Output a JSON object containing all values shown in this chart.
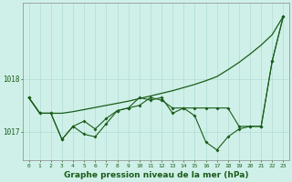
{
  "background_color": "#cff0e8",
  "line_color": "#1a5c1a",
  "grid_color": "#b0ddd4",
  "title": "Graphe pression niveau de la mer (hPa)",
  "title_fontsize": 6.5,
  "hours": [
    0,
    1,
    2,
    3,
    4,
    5,
    6,
    7,
    8,
    9,
    10,
    11,
    12,
    13,
    14,
    15,
    16,
    17,
    18,
    19,
    20,
    21,
    22,
    23
  ],
  "s_zigzag": [
    1017.65,
    1017.35,
    1017.35,
    1016.85,
    1017.1,
    1016.95,
    1016.9,
    1017.15,
    1017.4,
    1017.45,
    1017.65,
    1017.6,
    1017.65,
    1017.35,
    1017.45,
    1017.3,
    1016.8,
    1016.65,
    1016.9,
    1017.05,
    1017.1,
    1017.1,
    1018.35,
    1019.2
  ],
  "s_middle": [
    1017.65,
    1017.35,
    1017.35,
    1016.85,
    1017.1,
    1017.2,
    1017.05,
    1017.25,
    1017.4,
    1017.45,
    1017.5,
    1017.65,
    1017.6,
    1017.45,
    1017.45,
    1017.45,
    1017.45,
    1017.45,
    1017.45,
    1017.1,
    1017.1,
    1017.1,
    1018.35,
    1019.2
  ],
  "s_trend": [
    1017.65,
    1017.35,
    1017.35,
    1017.35,
    1017.38,
    1017.42,
    1017.46,
    1017.5,
    1017.54,
    1017.58,
    1017.63,
    1017.68,
    1017.73,
    1017.78,
    1017.84,
    1017.9,
    1017.97,
    1018.05,
    1018.18,
    1018.32,
    1018.48,
    1018.65,
    1018.85,
    1019.2
  ],
  "yticks": [
    1017.0,
    1018.0
  ],
  "ylim": [
    1016.45,
    1019.45
  ],
  "xlim": [
    -0.5,
    23.5
  ]
}
